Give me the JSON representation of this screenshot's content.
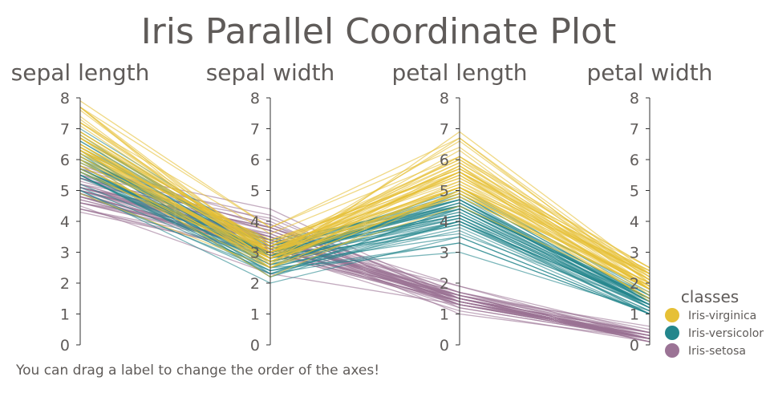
{
  "title": "Iris Parallel Coordinate Plot",
  "note": "You can drag a label to change the order of the axes!",
  "colors": {
    "Iris-virginica": "#e6c036",
    "Iris-versicolor": "#23868c",
    "Iris-setosa": "#9b7395"
  },
  "chart_data": {
    "type": "parallel-coordinates",
    "axes": [
      "sepal length",
      "sepal width",
      "petal length",
      "petal width"
    ],
    "ticks": [
      0,
      1,
      2,
      3,
      4,
      5,
      6,
      7,
      8
    ],
    "ylim": [
      0,
      8
    ],
    "legend": {
      "title": "classes",
      "placement": "bottom-right",
      "entries": [
        "Iris-virginica",
        "Iris-versicolor",
        "Iris-setosa"
      ]
    },
    "series": [
      {
        "name": "Iris-setosa",
        "rows": [
          [
            5.1,
            3.5,
            1.4,
            0.2
          ],
          [
            4.9,
            3.0,
            1.4,
            0.2
          ],
          [
            4.7,
            3.2,
            1.3,
            0.2
          ],
          [
            4.6,
            3.1,
            1.5,
            0.2
          ],
          [
            5.0,
            3.6,
            1.4,
            0.2
          ],
          [
            5.4,
            3.9,
            1.7,
            0.4
          ],
          [
            4.6,
            3.4,
            1.4,
            0.3
          ],
          [
            5.0,
            3.4,
            1.5,
            0.2
          ],
          [
            4.4,
            2.9,
            1.4,
            0.2
          ],
          [
            4.9,
            3.1,
            1.5,
            0.1
          ],
          [
            5.4,
            3.7,
            1.5,
            0.2
          ],
          [
            4.8,
            3.4,
            1.6,
            0.2
          ],
          [
            4.8,
            3.0,
            1.4,
            0.1
          ],
          [
            4.3,
            3.0,
            1.1,
            0.1
          ],
          [
            5.8,
            4.0,
            1.2,
            0.2
          ],
          [
            5.7,
            4.4,
            1.5,
            0.4
          ],
          [
            5.4,
            3.9,
            1.3,
            0.4
          ],
          [
            5.1,
            3.5,
            1.4,
            0.3
          ],
          [
            5.7,
            3.8,
            1.7,
            0.3
          ],
          [
            5.1,
            3.8,
            1.5,
            0.3
          ],
          [
            5.4,
            3.4,
            1.7,
            0.2
          ],
          [
            5.1,
            3.7,
            1.5,
            0.4
          ],
          [
            4.6,
            3.6,
            1.0,
            0.2
          ],
          [
            5.1,
            3.3,
            1.7,
            0.5
          ],
          [
            4.8,
            3.4,
            1.9,
            0.2
          ],
          [
            5.0,
            3.0,
            1.6,
            0.2
          ],
          [
            5.0,
            3.4,
            1.6,
            0.4
          ],
          [
            5.2,
            3.5,
            1.5,
            0.2
          ],
          [
            5.2,
            3.4,
            1.4,
            0.2
          ],
          [
            4.7,
            3.2,
            1.6,
            0.2
          ],
          [
            4.8,
            3.1,
            1.6,
            0.2
          ],
          [
            5.4,
            3.4,
            1.5,
            0.4
          ],
          [
            5.2,
            4.1,
            1.5,
            0.1
          ],
          [
            5.5,
            4.2,
            1.4,
            0.2
          ],
          [
            4.9,
            3.1,
            1.5,
            0.1
          ],
          [
            5.0,
            3.2,
            1.2,
            0.2
          ],
          [
            5.5,
            3.5,
            1.3,
            0.2
          ],
          [
            4.4,
            3.0,
            1.3,
            0.2
          ],
          [
            5.1,
            3.4,
            1.5,
            0.2
          ],
          [
            5.0,
            3.5,
            1.3,
            0.3
          ],
          [
            4.5,
            2.3,
            1.3,
            0.3
          ],
          [
            4.4,
            3.2,
            1.3,
            0.2
          ],
          [
            5.0,
            3.5,
            1.6,
            0.6
          ],
          [
            5.1,
            3.8,
            1.9,
            0.4
          ],
          [
            4.8,
            3.0,
            1.4,
            0.3
          ],
          [
            5.1,
            3.8,
            1.6,
            0.2
          ],
          [
            4.6,
            3.2,
            1.4,
            0.2
          ],
          [
            5.3,
            3.7,
            1.5,
            0.2
          ],
          [
            5.0,
            3.3,
            1.4,
            0.2
          ]
        ]
      },
      {
        "name": "Iris-versicolor",
        "rows": [
          [
            7.0,
            3.2,
            4.7,
            1.4
          ],
          [
            6.4,
            3.2,
            4.5,
            1.5
          ],
          [
            6.9,
            3.1,
            4.9,
            1.5
          ],
          [
            5.5,
            2.3,
            4.0,
            1.3
          ],
          [
            6.5,
            2.8,
            4.6,
            1.5
          ],
          [
            5.7,
            2.8,
            4.5,
            1.3
          ],
          [
            6.3,
            3.3,
            4.7,
            1.6
          ],
          [
            4.9,
            2.4,
            3.3,
            1.0
          ],
          [
            6.6,
            2.9,
            4.6,
            1.3
          ],
          [
            5.2,
            2.7,
            3.9,
            1.4
          ],
          [
            5.0,
            2.0,
            3.5,
            1.0
          ],
          [
            5.9,
            3.0,
            4.2,
            1.5
          ],
          [
            6.0,
            2.2,
            4.0,
            1.0
          ],
          [
            6.1,
            2.9,
            4.7,
            1.4
          ],
          [
            5.6,
            2.9,
            3.6,
            1.3
          ],
          [
            6.7,
            3.1,
            4.4,
            1.4
          ],
          [
            5.6,
            3.0,
            4.5,
            1.5
          ],
          [
            5.8,
            2.7,
            4.1,
            1.0
          ],
          [
            6.2,
            2.2,
            4.5,
            1.5
          ],
          [
            5.6,
            2.5,
            3.9,
            1.1
          ],
          [
            5.9,
            3.2,
            4.8,
            1.8
          ],
          [
            6.1,
            2.8,
            4.0,
            1.3
          ],
          [
            6.3,
            2.5,
            4.9,
            1.5
          ],
          [
            6.1,
            2.8,
            4.7,
            1.2
          ],
          [
            6.4,
            2.9,
            4.3,
            1.3
          ],
          [
            6.6,
            3.0,
            4.4,
            1.4
          ],
          [
            6.8,
            2.8,
            4.8,
            1.4
          ],
          [
            6.7,
            3.0,
            5.0,
            1.7
          ],
          [
            6.0,
            2.9,
            4.5,
            1.5
          ],
          [
            5.7,
            2.6,
            3.5,
            1.0
          ],
          [
            5.5,
            2.4,
            3.8,
            1.1
          ],
          [
            5.5,
            2.4,
            3.7,
            1.0
          ],
          [
            5.8,
            2.7,
            3.9,
            1.2
          ],
          [
            6.0,
            2.7,
            5.1,
            1.6
          ],
          [
            5.4,
            3.0,
            4.5,
            1.5
          ],
          [
            6.0,
            3.4,
            4.5,
            1.6
          ],
          [
            6.7,
            3.1,
            4.7,
            1.5
          ],
          [
            6.3,
            2.3,
            4.4,
            1.3
          ],
          [
            5.6,
            3.0,
            4.1,
            1.3
          ],
          [
            5.5,
            2.5,
            4.0,
            1.3
          ],
          [
            5.5,
            2.6,
            4.4,
            1.2
          ],
          [
            6.1,
            3.0,
            4.6,
            1.4
          ],
          [
            5.8,
            2.6,
            4.0,
            1.2
          ],
          [
            5.0,
            2.3,
            3.3,
            1.0
          ],
          [
            5.6,
            2.7,
            4.2,
            1.3
          ],
          [
            5.7,
            3.0,
            4.2,
            1.2
          ],
          [
            5.7,
            2.9,
            4.2,
            1.3
          ],
          [
            6.2,
            2.9,
            4.3,
            1.3
          ],
          [
            5.1,
            2.5,
            3.0,
            1.1
          ],
          [
            5.7,
            2.8,
            4.1,
            1.3
          ]
        ]
      },
      {
        "name": "Iris-virginica",
        "rows": [
          [
            6.3,
            3.3,
            6.0,
            2.5
          ],
          [
            5.8,
            2.7,
            5.1,
            1.9
          ],
          [
            7.1,
            3.0,
            5.9,
            2.1
          ],
          [
            6.3,
            2.9,
            5.6,
            1.8
          ],
          [
            6.5,
            3.0,
            5.8,
            2.2
          ],
          [
            7.6,
            3.0,
            6.6,
            2.1
          ],
          [
            4.9,
            2.5,
            4.5,
            1.7
          ],
          [
            7.3,
            2.9,
            6.3,
            1.8
          ],
          [
            6.7,
            2.5,
            5.8,
            1.8
          ],
          [
            7.2,
            3.6,
            6.1,
            2.5
          ],
          [
            6.5,
            3.2,
            5.1,
            2.0
          ],
          [
            6.4,
            2.7,
            5.3,
            1.9
          ],
          [
            6.8,
            3.0,
            5.5,
            2.1
          ],
          [
            5.7,
            2.5,
            5.0,
            2.0
          ],
          [
            5.8,
            2.8,
            5.1,
            2.4
          ],
          [
            6.4,
            3.2,
            5.3,
            2.3
          ],
          [
            6.5,
            3.0,
            5.5,
            1.8
          ],
          [
            7.7,
            3.8,
            6.7,
            2.2
          ],
          [
            7.7,
            2.6,
            6.9,
            2.3
          ],
          [
            6.0,
            2.2,
            5.0,
            1.5
          ],
          [
            6.9,
            3.2,
            5.7,
            2.3
          ],
          [
            5.6,
            2.8,
            4.9,
            2.0
          ],
          [
            7.7,
            2.8,
            6.7,
            2.0
          ],
          [
            6.3,
            2.7,
            4.9,
            1.8
          ],
          [
            6.7,
            3.3,
            5.7,
            2.1
          ],
          [
            7.2,
            3.2,
            6.0,
            1.8
          ],
          [
            6.2,
            2.8,
            4.8,
            1.8
          ],
          [
            6.1,
            3.0,
            4.9,
            1.8
          ],
          [
            6.4,
            2.8,
            5.6,
            2.1
          ],
          [
            7.2,
            3.0,
            5.8,
            1.6
          ],
          [
            7.4,
            2.8,
            6.1,
            1.9
          ],
          [
            7.9,
            3.8,
            6.4,
            2.0
          ],
          [
            6.4,
            2.8,
            5.6,
            2.2
          ],
          [
            6.3,
            2.8,
            5.1,
            1.5
          ],
          [
            6.1,
            2.6,
            5.6,
            1.4
          ],
          [
            7.7,
            3.0,
            6.1,
            2.3
          ],
          [
            6.3,
            3.4,
            5.6,
            2.4
          ],
          [
            6.4,
            3.1,
            5.5,
            1.8
          ],
          [
            6.0,
            3.0,
            4.8,
            1.8
          ],
          [
            6.9,
            3.1,
            5.4,
            2.1
          ],
          [
            6.7,
            3.1,
            5.6,
            2.4
          ],
          [
            6.9,
            3.1,
            5.1,
            2.3
          ],
          [
            5.8,
            2.7,
            5.1,
            1.9
          ],
          [
            6.8,
            3.2,
            5.9,
            2.3
          ],
          [
            6.7,
            3.3,
            5.7,
            2.5
          ],
          [
            6.7,
            3.0,
            5.2,
            2.3
          ],
          [
            6.3,
            2.5,
            5.0,
            1.9
          ],
          [
            6.5,
            3.0,
            5.2,
            2.0
          ],
          [
            6.2,
            3.4,
            5.4,
            2.3
          ],
          [
            5.9,
            3.0,
            5.1,
            1.8
          ]
        ]
      }
    ]
  }
}
